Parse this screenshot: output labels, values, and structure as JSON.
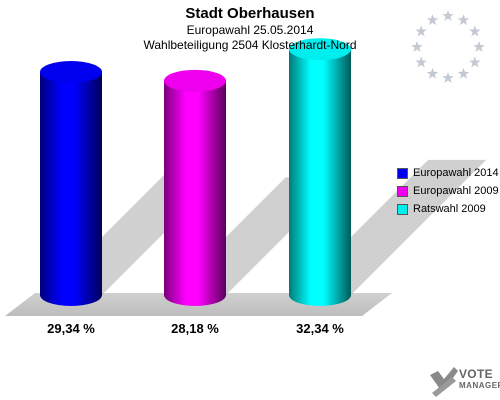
{
  "header": {
    "title": "Stadt Oberhausen",
    "subtitle": "Europawahl 25.05.2014",
    "subtitle2": "Wahlbeteiligung 2504 Klosterhardt-Nord"
  },
  "chart_data": {
    "type": "bar",
    "style": "3d-cylinder",
    "categories": [
      "Europawahl 2014",
      "Europawahl 2009",
      "Ratswahl 2009"
    ],
    "values": [
      29.34,
      28.18,
      32.34
    ],
    "value_labels": [
      "29,34 %",
      "28,18 %",
      "32,34 %"
    ],
    "colors": [
      "#0000ee",
      "#ee00ee",
      "#00eeee"
    ],
    "ylim": [
      0,
      40
    ],
    "legend_position": "right",
    "grid": false
  },
  "legend": {
    "items": [
      {
        "label": "Europawahl 2014",
        "color": "#0000ee"
      },
      {
        "label": "Europawahl 2009",
        "color": "#ee00ee"
      },
      {
        "label": "Ratswahl 2009",
        "color": "#00eeee"
      }
    ]
  },
  "logo": {
    "line1": "VOTE",
    "line2": "MANAGER"
  },
  "icons": {
    "eu_flag": "eu-stars-icon",
    "logo_mark": "checkmark-x-icon"
  }
}
